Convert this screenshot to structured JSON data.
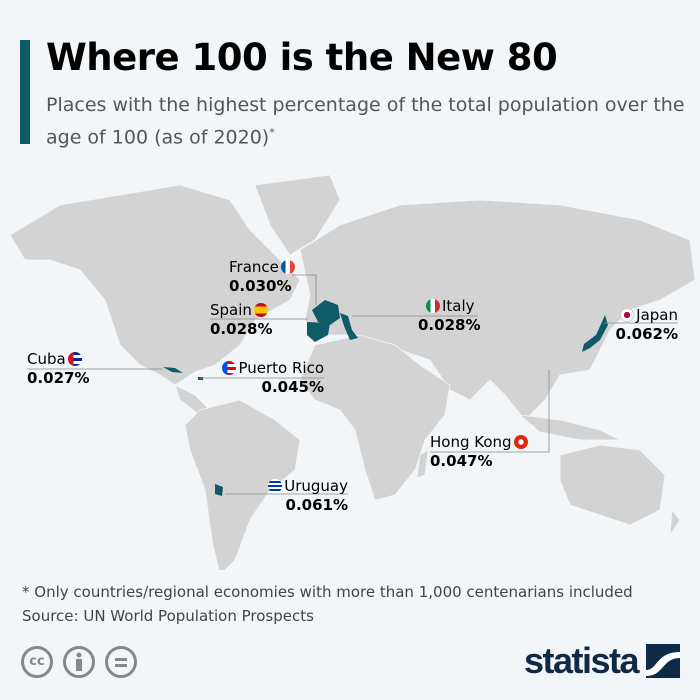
{
  "title": "Where 100 is the New 80",
  "subtitle": "Places with the highest percentage of the total population over the age of 100 (as of 2020)",
  "subtitle_mark": "*",
  "colors": {
    "highlight": "#0e5a66",
    "land": "#d3d3d3",
    "background": "#f2f6f9"
  },
  "places": [
    {
      "name": "France",
      "value": "0.030%"
    },
    {
      "name": "Spain",
      "value": "0.028%"
    },
    {
      "name": "Italy",
      "value": "0.028%"
    },
    {
      "name": "Japan",
      "value": "0.062%"
    },
    {
      "name": "Cuba",
      "value": "0.027%"
    },
    {
      "name": "Puerto Rico",
      "value": "0.045%"
    },
    {
      "name": "Hong Kong",
      "value": "0.047%"
    },
    {
      "name": "Uruguay",
      "value": "0.061%"
    }
  ],
  "footnote": "* Only countries/regional economies with more than 1,000 centenarians included",
  "source": "Source: UN World Population Prospects",
  "license_icons": [
    "cc-icon",
    "attribution-icon",
    "no-derivatives-icon"
  ],
  "logo": "statista"
}
